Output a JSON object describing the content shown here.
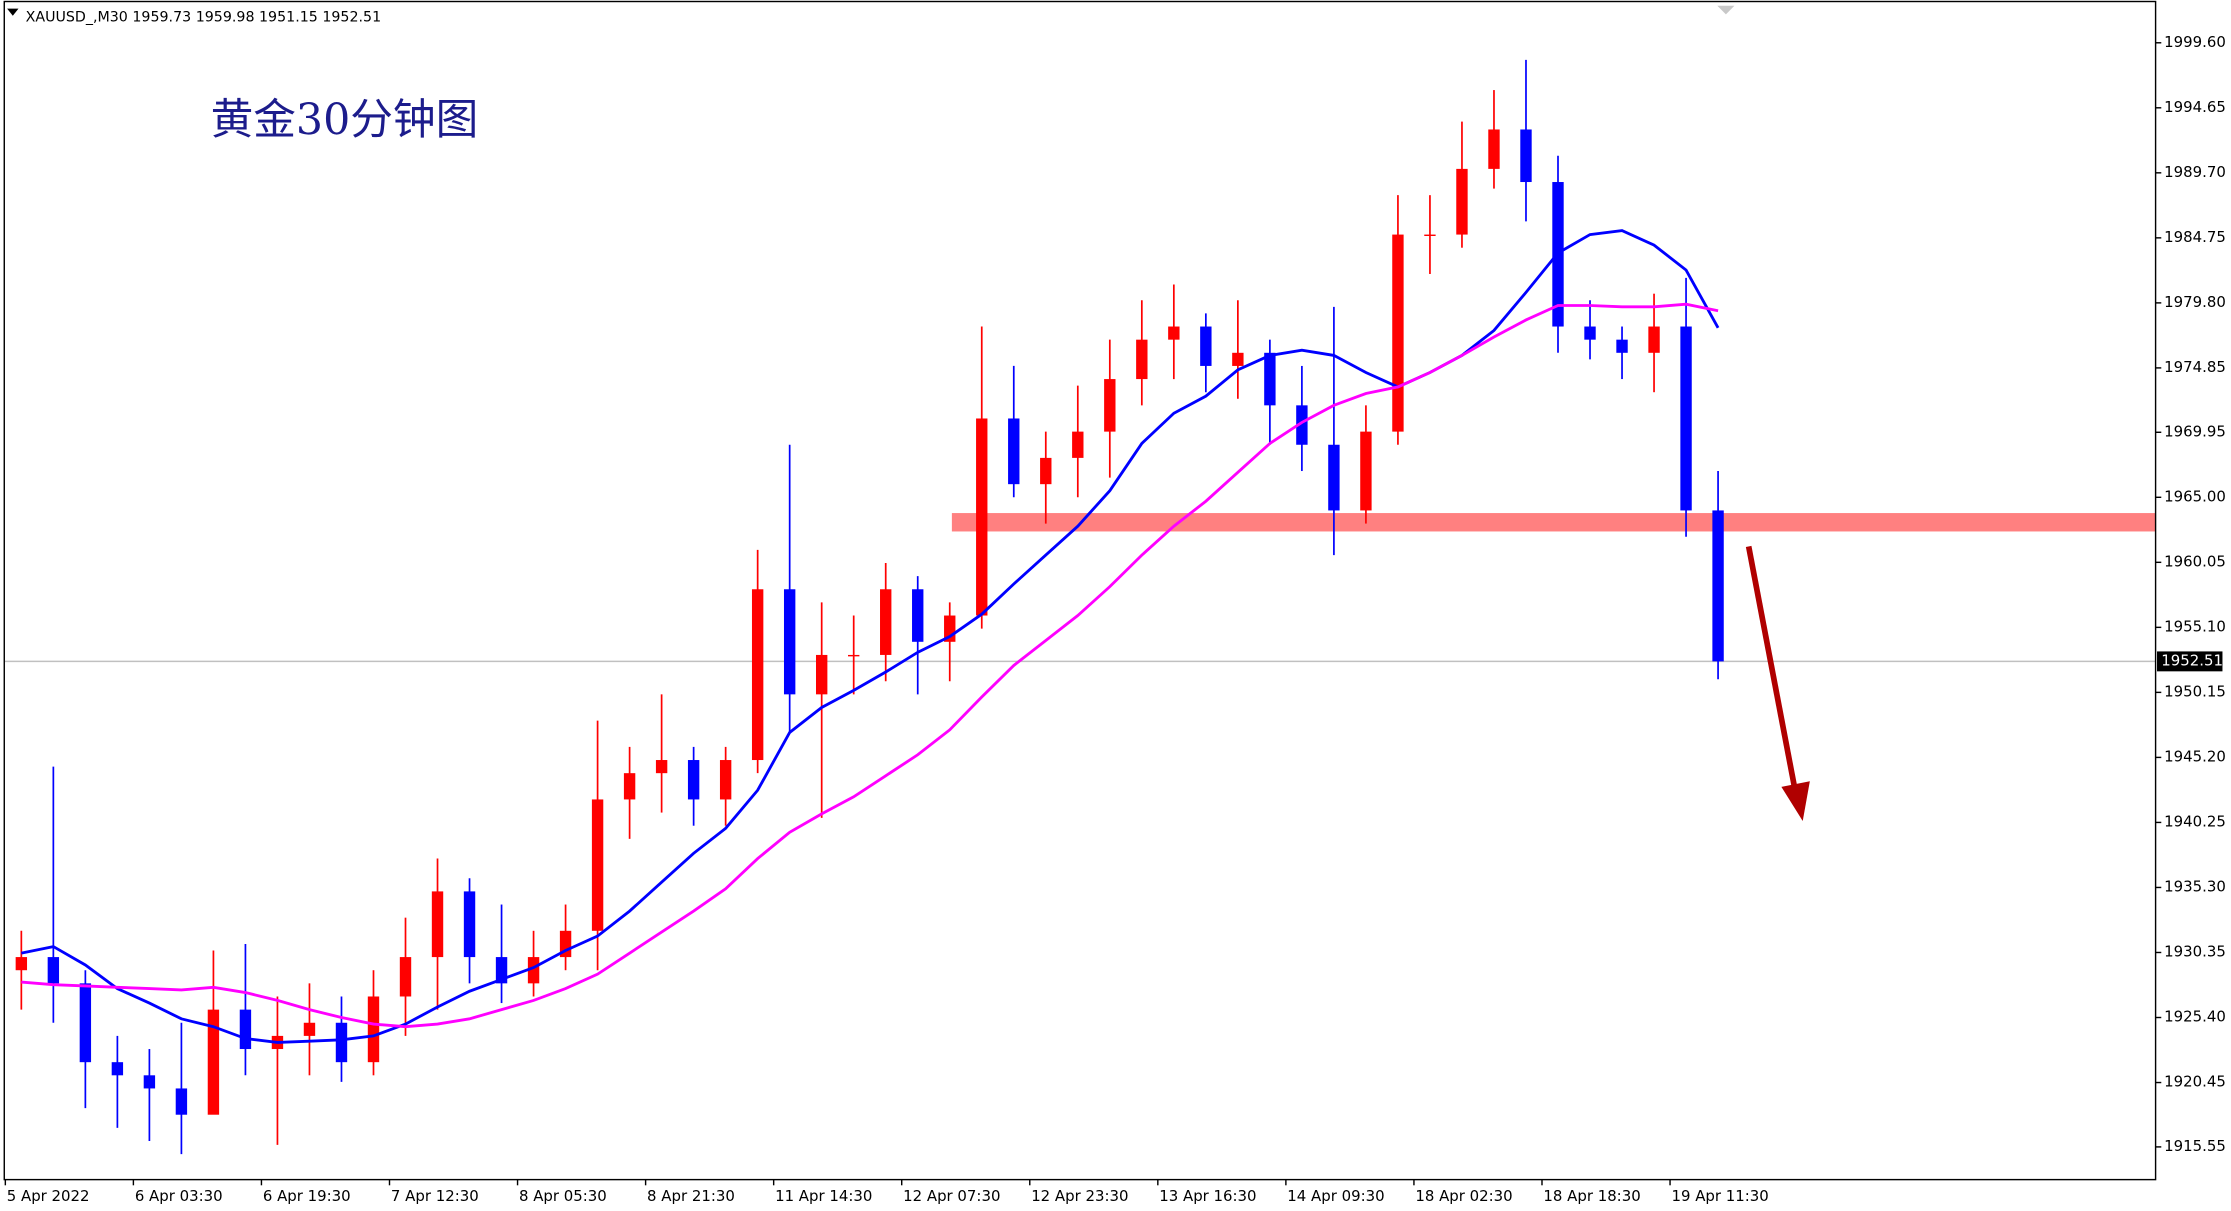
{
  "chart_data": {
    "type": "candlestick",
    "title": "黄金30分钟图",
    "symbol_info": "XAUUSD_,M30 1959.73 1959.98 1951.15 1952.51",
    "categories": [
      "5 Apr 2022",
      null,
      null,
      null,
      "6 Apr 03:30",
      null,
      null,
      null,
      "6 Apr 19:30",
      null,
      null,
      null,
      "7 Apr 12:30",
      null,
      null,
      null,
      "8 Apr 05:30",
      null,
      null,
      null,
      "8 Apr 21:30",
      null,
      null,
      null,
      "11 Apr 14:30",
      null,
      null,
      null,
      "12 Apr 07:30",
      null,
      null,
      null,
      "12 Apr 23:30",
      null,
      null,
      null,
      "13 Apr 16:30",
      null,
      null,
      null,
      "14 Apr 09:30",
      null,
      null,
      null,
      "18 Apr 02:30",
      null,
      null,
      null,
      "18 Apr 18:30",
      null,
      null,
      null,
      "19 Apr 11:30",
      null
    ],
    "candles": {
      "open": [
        1929,
        1930,
        1928,
        1922,
        1921,
        1920,
        1918,
        1926,
        1923,
        1924,
        1925,
        1922,
        1927,
        1930,
        1935,
        1930,
        1928,
        1930,
        1932,
        1942,
        1944,
        1945,
        1942,
        1945,
        1958,
        1950,
        1953,
        1953,
        1958,
        1954,
        1956,
        1971,
        1966,
        1968,
        1970,
        1974,
        1977,
        1978,
        1975,
        1976,
        1972,
        1969,
        1964,
        1970,
        1985,
        1985,
        1990,
        1993,
        1989,
        1978,
        1977,
        1976,
        1978,
        1964
      ],
      "high": [
        1932,
        1944.5,
        1929,
        1924,
        1923,
        1925,
        1930.5,
        1931,
        1927,
        1928,
        1927,
        1929,
        1933,
        1937.5,
        1936,
        1934,
        1932,
        1934,
        1948,
        1946,
        1950,
        1946,
        1946,
        1961,
        1969,
        1957,
        1956,
        1960,
        1959,
        1957,
        1978,
        1975,
        1970,
        1973.5,
        1977,
        1980,
        1981.2,
        1979,
        1980,
        1977,
        1975,
        1979.5,
        1972,
        1988,
        1988,
        1993.6,
        1996,
        1998.3,
        1991,
        1980,
        1978,
        1980.5,
        1981.7,
        1967
      ],
      "low": [
        1926,
        1925,
        1918.5,
        1917,
        1916,
        1915,
        1919,
        1921,
        1915.7,
        1921,
        1920.5,
        1921,
        1924,
        1926,
        1928,
        1926.5,
        1927,
        1929,
        1929,
        1939,
        1941,
        1940,
        1940,
        1944,
        1947,
        1940.6,
        1950,
        1951,
        1950,
        1951,
        1955,
        1965,
        1963,
        1965,
        1966.5,
        1972,
        1974,
        1973,
        1972.5,
        1969,
        1967,
        1960.6,
        1963,
        1969,
        1982,
        1984,
        1988.5,
        1986,
        1976,
        1975.5,
        1974,
        1973,
        1962,
        1951.15
      ],
      "close": [
        1930,
        1928,
        1922,
        1921,
        1920,
        1918,
        1926,
        1923,
        1924,
        1925,
        1922,
        1927,
        1930,
        1935,
        1930,
        1928,
        1930,
        1932,
        1942,
        1944,
        1945,
        1942,
        1945,
        1958,
        1950,
        1953,
        1953,
        1958,
        1954,
        1956,
        1971,
        1966,
        1968,
        1970,
        1974,
        1977,
        1978,
        1975,
        1976,
        1972,
        1969,
        1964,
        1970,
        1985,
        1985,
        1990,
        1993,
        1989,
        1978,
        1977,
        1976,
        1978,
        1964,
        1952.51
      ]
    },
    "up_color": "#ff0000",
    "down_color": "#0000ff",
    "moving_averages": [
      {
        "color": "#0000ff",
        "values": [
          1930.3,
          1930.8,
          1929.4,
          1927.6,
          1926.5,
          1925.3,
          1924.7,
          1923.8,
          1923.5,
          1923.6,
          1923.7,
          1924.0,
          1924.9,
          1926.2,
          1927.4,
          1928.3,
          1929.2,
          1930.5,
          1931.6,
          1933.5,
          1935.7,
          1937.9,
          1939.8,
          1942.7,
          1947.1,
          1949.0,
          1950.3,
          1951.7,
          1953.2,
          1954.4,
          1956.1,
          1958.4,
          1960.6,
          1962.8,
          1965.5,
          1969.1,
          1971.4,
          1972.7,
          1974.7,
          1975.8,
          1976.2,
          1975.8,
          1974.5,
          1973.4,
          1974.5,
          1975.8,
          1977.7,
          1980.6,
          1983.6,
          1985.0,
          1985.3,
          1984.2,
          1982.3,
          1977.9
        ]
      },
      {
        "color": "#ff00ff",
        "values": [
          1928.1,
          1927.9,
          1927.8,
          1927.7,
          1927.6,
          1927.5,
          1927.7,
          1927.3,
          1926.7,
          1926.0,
          1925.4,
          1924.9,
          1924.7,
          1924.9,
          1925.3,
          1926.0,
          1926.7,
          1927.6,
          1928.7,
          1930.3,
          1931.9,
          1933.5,
          1935.2,
          1937.5,
          1939.5,
          1940.9,
          1942.2,
          1943.8,
          1945.4,
          1947.3,
          1949.8,
          1952.2,
          1954.1,
          1956.0,
          1958.2,
          1960.6,
          1962.8,
          1964.7,
          1966.9,
          1969.1,
          1970.7,
          1972.0,
          1972.9,
          1973.4,
          1974.5,
          1975.8,
          1977.2,
          1978.5,
          1979.6,
          1979.6,
          1979.5,
          1979.5,
          1979.7,
          1979.2
        ]
      }
    ],
    "ylim": [
      1913.06,
      2002.85
    ],
    "yticks": [
      {
        "value": 1999.6,
        "label": "1999.60"
      },
      {
        "value": 1994.65,
        "label": "1994.65"
      },
      {
        "value": 1989.7,
        "label": "1989.70"
      },
      {
        "value": 1984.75,
        "label": "1984.75"
      },
      {
        "value": 1979.8,
        "label": "1979.80"
      },
      {
        "value": 1974.85,
        "label": "1974.85"
      },
      {
        "value": 1969.95,
        "label": "1969.95"
      },
      {
        "value": 1965.0,
        "label": "1965.00"
      },
      {
        "value": 1960.05,
        "label": "1960.05"
      },
      {
        "value": 1955.1,
        "label": "1955.10"
      },
      {
        "value": 1950.15,
        "label": "1950.15"
      },
      {
        "value": 1945.2,
        "label": "1945.20"
      },
      {
        "value": 1940.25,
        "label": "1940.25"
      },
      {
        "value": 1935.3,
        "label": "1935.30"
      },
      {
        "value": 1930.35,
        "label": "1930.35"
      },
      {
        "value": 1925.4,
        "label": "1925.40"
      },
      {
        "value": 1920.45,
        "label": "1920.45"
      },
      {
        "value": 1915.55,
        "label": "1915.55"
      }
    ],
    "support_zone": {
      "low": 1962.4,
      "high": 1963.8,
      "color": "#ff8080"
    }
  }
}
